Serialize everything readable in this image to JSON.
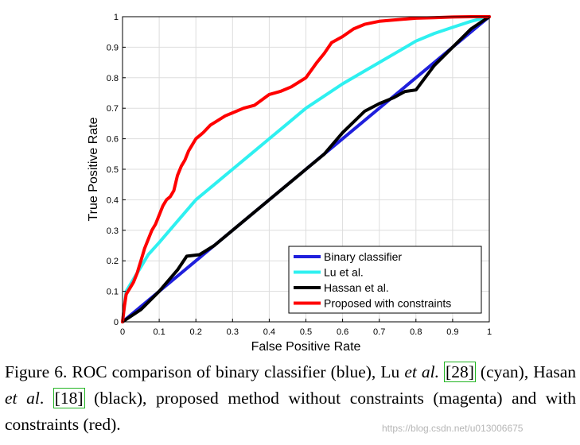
{
  "chart_data": {
    "type": "line",
    "xlabel": "False Positive Rate",
    "ylabel": "True Positive Rate",
    "xlim": [
      0,
      1
    ],
    "ylim": [
      0,
      1
    ],
    "xticks": [
      "0",
      "0.1",
      "0.2",
      "0.3",
      "0.4",
      "0.5",
      "0.6",
      "0.7",
      "0.8",
      "0.9",
      "1"
    ],
    "yticks": [
      "0",
      "0.1",
      "0.2",
      "0.3",
      "0.4",
      "0.5",
      "0.6",
      "0.7",
      "0.8",
      "0.9",
      "1"
    ],
    "grid": true,
    "legend_position": "bottom-right",
    "series": [
      {
        "name": "Binary classifier",
        "color": "#1f1fdc",
        "x": [
          0,
          1
        ],
        "y": [
          0,
          1
        ]
      },
      {
        "name": "Lu et al.",
        "color": "#2ef0f0",
        "x": [
          0,
          0.01,
          0.03,
          0.05,
          0.07,
          0.1,
          0.15,
          0.2,
          0.25,
          0.3,
          0.35,
          0.4,
          0.45,
          0.5,
          0.55,
          0.6,
          0.65,
          0.7,
          0.75,
          0.8,
          0.85,
          0.9,
          0.95,
          1.0
        ],
        "y": [
          0,
          0.1,
          0.14,
          0.18,
          0.22,
          0.26,
          0.33,
          0.4,
          0.45,
          0.5,
          0.55,
          0.6,
          0.65,
          0.7,
          0.74,
          0.78,
          0.815,
          0.85,
          0.885,
          0.92,
          0.945,
          0.965,
          0.985,
          1.0
        ]
      },
      {
        "name": "Hassan et al.",
        "color": "#000000",
        "x": [
          0,
          0.05,
          0.1,
          0.15,
          0.175,
          0.21,
          0.25,
          0.3,
          0.35,
          0.4,
          0.45,
          0.5,
          0.55,
          0.6,
          0.66,
          0.7,
          0.74,
          0.77,
          0.8,
          0.85,
          0.9,
          0.95,
          1.0
        ],
        "y": [
          0,
          0.04,
          0.1,
          0.17,
          0.215,
          0.22,
          0.25,
          0.3,
          0.35,
          0.4,
          0.45,
          0.5,
          0.55,
          0.62,
          0.69,
          0.715,
          0.735,
          0.755,
          0.76,
          0.84,
          0.9,
          0.96,
          1.0
        ]
      },
      {
        "name": "Proposed with constraints",
        "color": "#ff0000",
        "x": [
          0,
          0.005,
          0.01,
          0.02,
          0.03,
          0.04,
          0.05,
          0.06,
          0.07,
          0.08,
          0.09,
          0.1,
          0.11,
          0.12,
          0.13,
          0.14,
          0.15,
          0.16,
          0.17,
          0.18,
          0.19,
          0.2,
          0.21,
          0.22,
          0.24,
          0.26,
          0.28,
          0.3,
          0.33,
          0.36,
          0.4,
          0.43,
          0.46,
          0.5,
          0.53,
          0.55,
          0.57,
          0.6,
          0.63,
          0.66,
          0.7,
          0.75,
          0.8,
          0.85,
          0.9,
          0.95,
          1.0
        ],
        "y": [
          0,
          0.05,
          0.09,
          0.11,
          0.13,
          0.16,
          0.2,
          0.24,
          0.27,
          0.3,
          0.32,
          0.35,
          0.38,
          0.4,
          0.41,
          0.43,
          0.48,
          0.51,
          0.53,
          0.56,
          0.58,
          0.6,
          0.61,
          0.62,
          0.645,
          0.66,
          0.675,
          0.685,
          0.7,
          0.71,
          0.745,
          0.755,
          0.77,
          0.8,
          0.85,
          0.88,
          0.915,
          0.935,
          0.96,
          0.975,
          0.985,
          0.99,
          0.995,
          0.997,
          0.999,
          1.0,
          1.0
        ]
      }
    ]
  },
  "caption": {
    "part1": "Figure 6.  ROC comparison of binary classifier (blue), Lu ",
    "etal1": "et al.",
    "ref1": "[28]",
    "part2": " (cyan), Hasan ",
    "etal2": "et al",
    "part3": ". ",
    "ref2": "[18]",
    "part4": " (black), proposed method without constraints (magenta) and with constraints (red)."
  },
  "watermark": "https://blog.csdn.net/u013006675"
}
